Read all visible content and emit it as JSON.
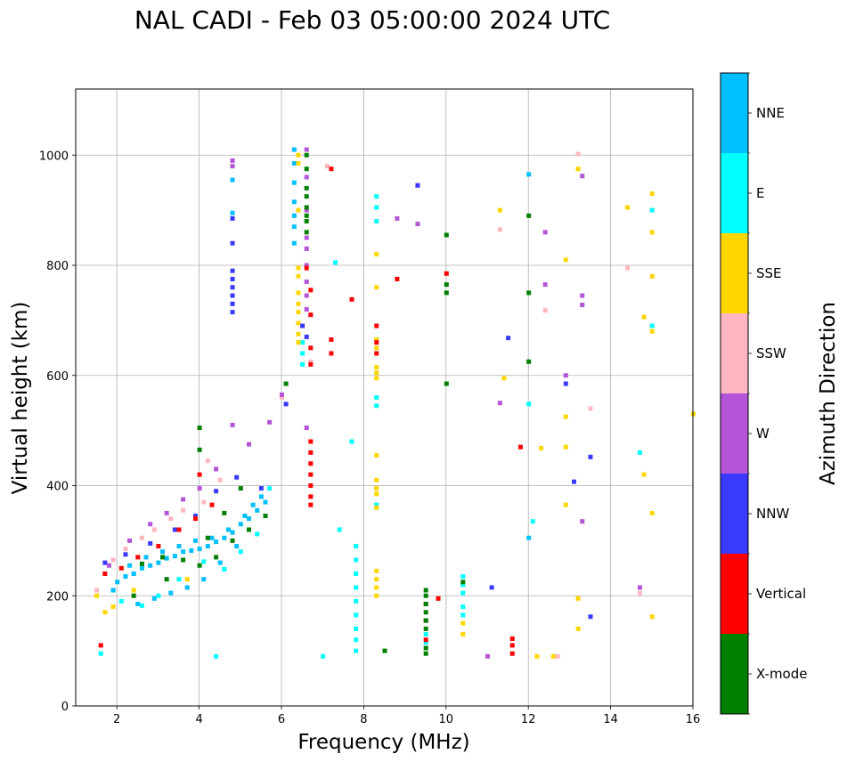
{
  "chart_data": {
    "type": "scatter",
    "title": "NAL CADI - Feb 03 05:00:00 2024 UTC",
    "xlabel": "Frequency (MHz)",
    "ylabel": "Virtual height (km)",
    "xlim": [
      1,
      16
    ],
    "ylim": [
      0,
      1120
    ],
    "xticks": [
      2,
      4,
      6,
      8,
      10,
      12,
      14,
      16
    ],
    "yticks": [
      0,
      200,
      400,
      600,
      800,
      1000
    ],
    "grid": true,
    "colorbar": {
      "label": "Azimuth Direction",
      "categories": [
        {
          "name": "X-mode",
          "color": "#008000"
        },
        {
          "name": "Vertical",
          "color": "#ff0000"
        },
        {
          "name": "NNW",
          "color": "#3a3aff"
        },
        {
          "name": "W",
          "color": "#b455d8"
        },
        {
          "name": "SSW",
          "color": "#ffb6c1"
        },
        {
          "name": "SSE",
          "color": "#ffd700"
        },
        {
          "name": "E",
          "color": "#00ffff"
        },
        {
          "name": "NNE",
          "color": "#00bfff"
        }
      ]
    },
    "series": [
      {
        "name": "NNE",
        "points": [
          [
            1.9,
            210
          ],
          [
            2.0,
            225
          ],
          [
            2.2,
            235
          ],
          [
            2.4,
            240
          ],
          [
            2.6,
            250
          ],
          [
            2.8,
            255
          ],
          [
            3.0,
            260
          ],
          [
            3.2,
            268
          ],
          [
            3.4,
            272
          ],
          [
            3.6,
            280
          ],
          [
            3.8,
            282
          ],
          [
            4.0,
            285
          ],
          [
            4.2,
            290
          ],
          [
            4.4,
            298
          ],
          [
            4.6,
            305
          ],
          [
            4.8,
            315
          ],
          [
            5.0,
            330
          ],
          [
            5.2,
            340
          ],
          [
            5.4,
            355
          ],
          [
            5.6,
            370
          ],
          [
            2.3,
            255
          ],
          [
            2.7,
            270
          ],
          [
            3.1,
            280
          ],
          [
            3.5,
            290
          ],
          [
            3.9,
            300
          ],
          [
            4.3,
            305
          ],
          [
            4.7,
            320
          ],
          [
            5.1,
            345
          ],
          [
            5.5,
            380
          ],
          [
            2.5,
            185
          ],
          [
            2.9,
            195
          ],
          [
            3.3,
            205
          ],
          [
            3.7,
            215
          ],
          [
            4.1,
            230
          ],
          [
            4.5,
            260
          ],
          [
            4.9,
            290
          ],
          [
            5.3,
            365
          ],
          [
            6.3,
            1010
          ],
          [
            6.3,
            985
          ],
          [
            6.3,
            950
          ],
          [
            6.3,
            915
          ],
          [
            6.3,
            890
          ],
          [
            6.3,
            870
          ],
          [
            6.3,
            840
          ],
          [
            4.8,
            895
          ],
          [
            4.8,
            955
          ],
          [
            12.0,
            965
          ],
          [
            12.0,
            305
          ]
        ]
      },
      {
        "name": "E",
        "points": [
          [
            2.1,
            190
          ],
          [
            2.6,
            182
          ],
          [
            3.0,
            200
          ],
          [
            3.5,
            230
          ],
          [
            4.1,
            262
          ],
          [
            4.6,
            248
          ],
          [
            5.0,
            280
          ],
          [
            5.4,
            312
          ],
          [
            5.7,
            395
          ],
          [
            7.8,
            290
          ],
          [
            7.8,
            265
          ],
          [
            7.8,
            240
          ],
          [
            7.8,
            215
          ],
          [
            7.8,
            190
          ],
          [
            7.8,
            165
          ],
          [
            7.8,
            140
          ],
          [
            7.8,
            120
          ],
          [
            7.8,
            100
          ],
          [
            8.3,
            925
          ],
          [
            8.3,
            905
          ],
          [
            8.3,
            880
          ],
          [
            8.3,
            560
          ],
          [
            8.3,
            545
          ],
          [
            8.3,
            365
          ],
          [
            9.5,
            130
          ],
          [
            9.5,
            115
          ],
          [
            10.4,
            235
          ],
          [
            10.4,
            220
          ],
          [
            10.4,
            205
          ],
          [
            10.4,
            180
          ],
          [
            10.4,
            165
          ],
          [
            15.0,
            900
          ],
          [
            15.0,
            690
          ],
          [
            14.7,
            460
          ],
          [
            12.1,
            335
          ],
          [
            12.0,
            548
          ],
          [
            7.7,
            480
          ],
          [
            7.4,
            320
          ],
          [
            6.5,
            660
          ],
          [
            6.5,
            640
          ],
          [
            6.5,
            620
          ],
          [
            7.3,
            805
          ],
          [
            7.0,
            90
          ],
          [
            4.4,
            90
          ],
          [
            1.6,
            95
          ]
        ]
      },
      {
        "name": "SSE",
        "points": [
          [
            1.5,
            200
          ],
          [
            1.7,
            170
          ],
          [
            1.9,
            180
          ],
          [
            2.4,
            210
          ],
          [
            3.7,
            230
          ],
          [
            6.4,
            795
          ],
          [
            6.4,
            780
          ],
          [
            6.4,
            750
          ],
          [
            6.4,
            730
          ],
          [
            6.4,
            715
          ],
          [
            6.4,
            695
          ],
          [
            6.4,
            675
          ],
          [
            6.4,
            660
          ],
          [
            6.4,
            1000
          ],
          [
            6.4,
            985
          ],
          [
            6.4,
            900
          ],
          [
            8.3,
            245
          ],
          [
            8.3,
            230
          ],
          [
            8.3,
            215
          ],
          [
            8.3,
            200
          ],
          [
            8.3,
            395
          ],
          [
            8.3,
            385
          ],
          [
            8.3,
            360
          ],
          [
            8.3,
            410
          ],
          [
            8.3,
            455
          ],
          [
            8.3,
            615
          ],
          [
            8.3,
            605
          ],
          [
            8.3,
            595
          ],
          [
            8.3,
            650
          ],
          [
            8.3,
            665
          ],
          [
            8.3,
            760
          ],
          [
            8.3,
            820
          ],
          [
            12.9,
            810
          ],
          [
            12.9,
            525
          ],
          [
            12.9,
            470
          ],
          [
            12.9,
            365
          ],
          [
            13.2,
            195
          ],
          [
            13.2,
            140
          ],
          [
            12.6,
            90
          ],
          [
            12.2,
            90
          ],
          [
            11.4,
            595
          ],
          [
            11.3,
            900
          ],
          [
            14.8,
            706
          ],
          [
            14.8,
            420
          ],
          [
            15.0,
            780
          ],
          [
            15.0,
            860
          ],
          [
            15.0,
            930
          ],
          [
            15.0,
            680
          ],
          [
            15.0,
            350
          ],
          [
            15.0,
            162
          ],
          [
            14.4,
            905
          ],
          [
            10.4,
            130
          ],
          [
            10.4,
            150
          ],
          [
            16.0,
            530
          ],
          [
            13.2,
            975
          ],
          [
            12.3,
            468
          ]
        ]
      },
      {
        "name": "SSW",
        "points": [
          [
            1.5,
            210
          ],
          [
            1.9,
            265
          ],
          [
            2.2,
            285
          ],
          [
            2.6,
            305
          ],
          [
            2.9,
            320
          ],
          [
            3.3,
            340
          ],
          [
            3.6,
            355
          ],
          [
            4.1,
            370
          ],
          [
            4.5,
            410
          ],
          [
            4.2,
            445
          ],
          [
            6.0,
            560
          ],
          [
            6.7,
            625
          ],
          [
            7.1,
            980
          ],
          [
            11.3,
            865
          ],
          [
            13.2,
            1002
          ],
          [
            12.4,
            718
          ],
          [
            14.4,
            795
          ],
          [
            14.7,
            205
          ],
          [
            13.5,
            540
          ],
          [
            12.7,
            90
          ]
        ]
      },
      {
        "name": "W",
        "points": [
          [
            1.8,
            255
          ],
          [
            2.3,
            300
          ],
          [
            2.8,
            330
          ],
          [
            3.2,
            350
          ],
          [
            3.6,
            375
          ],
          [
            4.0,
            395
          ],
          [
            4.4,
            430
          ],
          [
            4.8,
            510
          ],
          [
            5.2,
            475
          ],
          [
            5.7,
            515
          ],
          [
            6.0,
            565
          ],
          [
            6.6,
            1010
          ],
          [
            6.6,
            960
          ],
          [
            6.6,
            900
          ],
          [
            6.6,
            850
          ],
          [
            6.6,
            830
          ],
          [
            6.6,
            800
          ],
          [
            6.6,
            770
          ],
          [
            6.6,
            745
          ],
          [
            6.6,
            720
          ],
          [
            6.6,
            505
          ],
          [
            4.8,
            990
          ],
          [
            4.8,
            980
          ],
          [
            9.3,
            875
          ],
          [
            8.8,
            885
          ],
          [
            9.3,
            945
          ],
          [
            12.4,
            860
          ],
          [
            12.4,
            765
          ],
          [
            12.9,
            600
          ],
          [
            13.3,
            745
          ],
          [
            13.3,
            728
          ],
          [
            13.3,
            962
          ],
          [
            13.3,
            335
          ],
          [
            14.7,
            215
          ],
          [
            11.0,
            90
          ],
          [
            11.3,
            550
          ]
        ]
      },
      {
        "name": "NNW",
        "points": [
          [
            1.7,
            260
          ],
          [
            2.2,
            275
          ],
          [
            2.8,
            295
          ],
          [
            3.4,
            320
          ],
          [
            3.9,
            345
          ],
          [
            4.4,
            390
          ],
          [
            4.9,
            415
          ],
          [
            5.5,
            395
          ],
          [
            4.8,
            790
          ],
          [
            4.8,
            775
          ],
          [
            4.8,
            760
          ],
          [
            4.8,
            745
          ],
          [
            4.8,
            730
          ],
          [
            4.8,
            715
          ],
          [
            4.8,
            840
          ],
          [
            4.8,
            885
          ],
          [
            6.1,
            548
          ],
          [
            6.5,
            690
          ],
          [
            6.6,
            670
          ],
          [
            9.3,
            945
          ],
          [
            11.5,
            668
          ],
          [
            12.9,
            585
          ],
          [
            13.1,
            407
          ],
          [
            13.5,
            452
          ],
          [
            11.1,
            215
          ],
          [
            13.5,
            162
          ]
        ]
      },
      {
        "name": "Vertical",
        "points": [
          [
            1.7,
            240
          ],
          [
            2.1,
            250
          ],
          [
            2.5,
            270
          ],
          [
            3.0,
            290
          ],
          [
            3.5,
            320
          ],
          [
            3.9,
            340
          ],
          [
            4.3,
            365
          ],
          [
            4.0,
            420
          ],
          [
            6.7,
            755
          ],
          [
            6.7,
            710
          ],
          [
            6.7,
            650
          ],
          [
            6.7,
            620
          ],
          [
            6.7,
            480
          ],
          [
            6.7,
            460
          ],
          [
            6.7,
            440
          ],
          [
            6.7,
            420
          ],
          [
            6.7,
            400
          ],
          [
            6.7,
            380
          ],
          [
            6.7,
            365
          ],
          [
            7.2,
            640
          ],
          [
            7.2,
            665
          ],
          [
            7.2,
            975
          ],
          [
            7.7,
            738
          ],
          [
            8.3,
            690
          ],
          [
            8.3,
            660
          ],
          [
            8.3,
            640
          ],
          [
            8.8,
            775
          ],
          [
            9.5,
            120
          ],
          [
            9.5,
            155
          ],
          [
            9.5,
            185
          ],
          [
            9.8,
            195
          ],
          [
            10.0,
            785
          ],
          [
            11.8,
            470
          ],
          [
            11.6,
            122
          ],
          [
            11.6,
            110
          ],
          [
            11.6,
            95
          ],
          [
            1.6,
            110
          ],
          [
            6.6,
            795
          ]
        ]
      },
      {
        "name": "X-mode",
        "points": [
          [
            2.6,
            258
          ],
          [
            3.1,
            270
          ],
          [
            3.6,
            265
          ],
          [
            4.0,
            255
          ],
          [
            4.4,
            270
          ],
          [
            4.8,
            300
          ],
          [
            5.2,
            320
          ],
          [
            5.6,
            345
          ],
          [
            4.2,
            305
          ],
          [
            4.6,
            350
          ],
          [
            5.0,
            395
          ],
          [
            4.0,
            465
          ],
          [
            4.0,
            505
          ],
          [
            6.6,
            1000
          ],
          [
            6.6,
            975
          ],
          [
            6.6,
            940
          ],
          [
            6.6,
            925
          ],
          [
            6.6,
            905
          ],
          [
            6.6,
            890
          ],
          [
            6.6,
            880
          ],
          [
            6.6,
            860
          ],
          [
            6.1,
            585
          ],
          [
            9.5,
            210
          ],
          [
            9.5,
            200
          ],
          [
            9.5,
            185
          ],
          [
            9.5,
            170
          ],
          [
            9.5,
            155
          ],
          [
            9.5,
            140
          ],
          [
            9.5,
            105
          ],
          [
            9.5,
            95
          ],
          [
            10.0,
            855
          ],
          [
            10.0,
            765
          ],
          [
            10.0,
            750
          ],
          [
            10.0,
            585
          ],
          [
            10.4,
            225
          ],
          [
            12.0,
            890
          ],
          [
            12.0,
            750
          ],
          [
            12.0,
            625
          ],
          [
            8.5,
            100
          ],
          [
            2.4,
            200
          ],
          [
            3.2,
            230
          ]
        ]
      }
    ]
  }
}
